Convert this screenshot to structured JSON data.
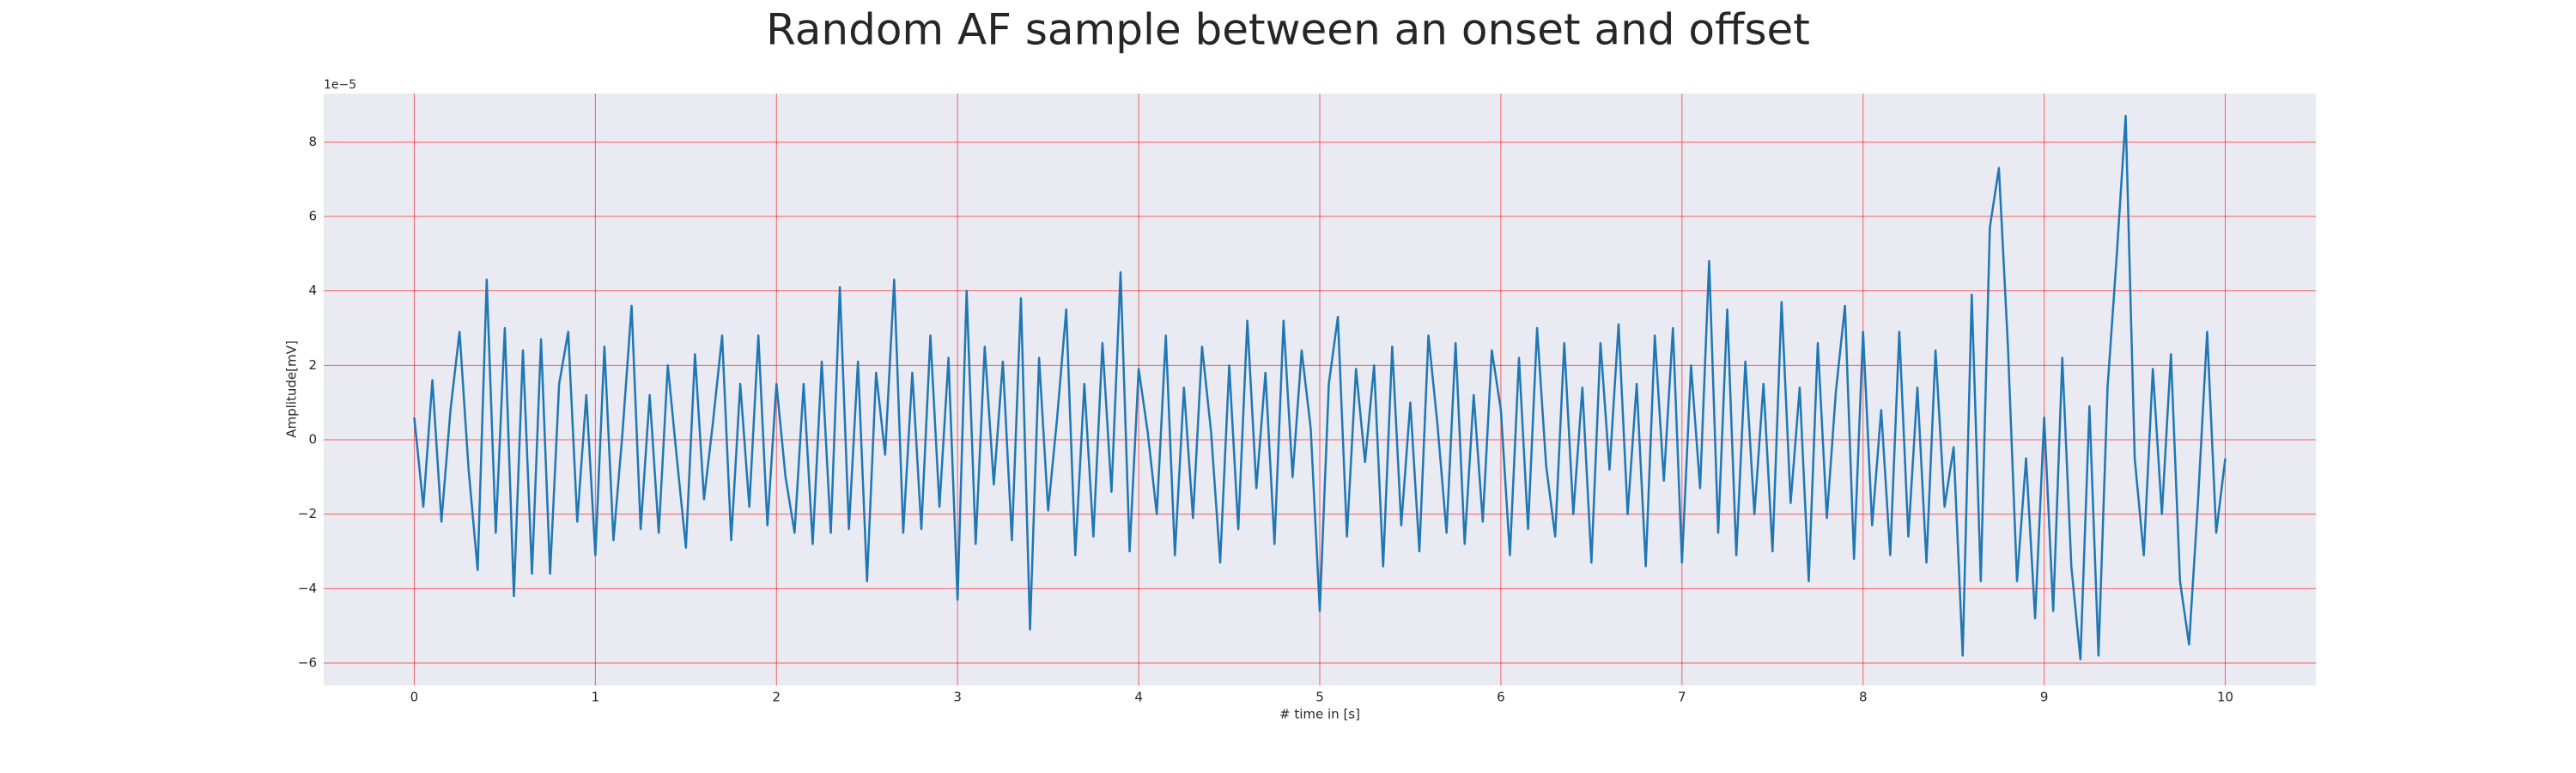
{
  "chart_data": {
    "type": "line",
    "title": "Random AF sample between an onset and offset",
    "xlabel": "# time in [s]",
    "ylabel": "Amplitude[mV]",
    "y_offset_label": "1e−5",
    "color": "#1f77b4",
    "background": "#eaeaf2",
    "grid": true,
    "grid_color": "#ff0000",
    "xlim": [
      -0.5,
      10.5
    ],
    "ylim": [
      -6.6,
      9.3
    ],
    "xticks": [
      0,
      1,
      2,
      3,
      4,
      5,
      6,
      7,
      8,
      9,
      10
    ],
    "yticks": [
      {
        "value": -6,
        "label": "−6"
      },
      {
        "value": -4,
        "label": "−4"
      },
      {
        "value": -2,
        "label": "−2"
      },
      0,
      2,
      4,
      6,
      8
    ],
    "x": [
      0,
      0.05,
      0.1,
      0.15,
      0.2,
      0.25,
      0.3,
      0.35,
      0.4,
      0.45,
      0.5,
      0.55,
      0.6,
      0.65,
      0.7,
      0.75,
      0.8,
      0.85,
      0.9,
      0.95,
      1,
      1.05,
      1.1,
      1.15,
      1.2,
      1.25,
      1.3,
      1.35,
      1.4,
      1.45,
      1.5,
      1.55,
      1.6,
      1.65,
      1.7,
      1.75,
      1.8,
      1.85,
      1.9,
      1.95,
      2,
      2.05,
      2.1,
      2.15,
      2.2,
      2.25,
      2.3,
      2.35,
      2.4,
      2.45,
      2.5,
      2.55,
      2.6,
      2.65,
      2.7,
      2.75,
      2.8,
      2.85,
      2.9,
      2.95,
      3,
      3.05,
      3.1,
      3.15,
      3.2,
      3.25,
      3.3,
      3.35,
      3.4,
      3.45,
      3.5,
      3.55,
      3.6,
      3.65,
      3.7,
      3.75,
      3.8,
      3.85,
      3.9,
      3.95,
      4,
      4.05,
      4.1,
      4.15,
      4.2,
      4.25,
      4.3,
      4.35,
      4.4,
      4.45,
      4.5,
      4.55,
      4.6,
      4.65,
      4.7,
      4.75,
      4.8,
      4.85,
      4.9,
      4.95,
      5,
      5.05,
      5.1,
      5.15,
      5.2,
      5.25,
      5.3,
      5.35,
      5.4,
      5.45,
      5.5,
      5.55,
      5.6,
      5.65,
      5.7,
      5.75,
      5.8,
      5.85,
      5.9,
      5.95,
      6,
      6.05,
      6.1,
      6.15,
      6.2,
      6.25,
      6.3,
      6.35,
      6.4,
      6.45,
      6.5,
      6.55,
      6.6,
      6.65,
      6.7,
      6.75,
      6.8,
      6.85,
      6.9,
      6.95,
      7,
      7.05,
      7.1,
      7.15,
      7.2,
      7.25,
      7.3,
      7.35,
      7.4,
      7.45,
      7.5,
      7.55,
      7.6,
      7.65,
      7.7,
      7.75,
      7.8,
      7.85,
      7.9,
      7.95,
      8,
      8.05,
      8.1,
      8.15,
      8.2,
      8.25,
      8.3,
      8.35,
      8.4,
      8.45,
      8.5,
      8.55,
      8.6,
      8.65,
      8.7,
      8.75,
      8.8,
      8.85,
      8.9,
      8.95,
      9,
      9.05,
      9.1,
      9.15,
      9.2,
      9.25,
      9.3,
      9.35,
      9.4,
      9.45,
      9.5,
      9.55,
      9.6,
      9.65,
      9.7,
      9.75,
      9.8,
      9.85,
      9.9,
      9.95,
      10
    ],
    "values": [
      0.6,
      -1.8,
      1.6,
      -2.2,
      0.8,
      2.9,
      -0.8,
      -3.5,
      4.3,
      -2.5,
      3.0,
      -4.2,
      2.4,
      -3.6,
      2.7,
      -3.6,
      1.5,
      2.9,
      -2.2,
      1.2,
      -3.1,
      2.5,
      -2.7,
      0.2,
      3.6,
      -2.4,
      1.2,
      -2.5,
      2.0,
      -0.5,
      -2.9,
      2.3,
      -1.6,
      0.5,
      2.8,
      -2.7,
      1.5,
      -1.8,
      2.8,
      -2.3,
      1.5,
      -1.0,
      -2.5,
      1.5,
      -2.8,
      2.1,
      -2.5,
      4.1,
      -2.4,
      2.1,
      -3.8,
      1.8,
      -0.4,
      4.3,
      -2.5,
      1.8,
      -2.4,
      2.8,
      -1.8,
      2.2,
      -4.3,
      4.0,
      -2.8,
      2.5,
      -1.2,
      2.1,
      -2.7,
      3.8,
      -5.1,
      2.2,
      -1.9,
      0.6,
      3.5,
      -3.1,
      1.5,
      -2.6,
      2.6,
      -1.4,
      4.5,
      -3.0,
      1.9,
      0.2,
      -2.0,
      2.8,
      -3.1,
      1.4,
      -2.1,
      2.5,
      0.2,
      -3.3,
      2.0,
      -2.4,
      3.2,
      -1.3,
      1.8,
      -2.8,
      3.2,
      -1.0,
      2.4,
      0.3,
      -4.6,
      1.5,
      3.3,
      -2.6,
      1.9,
      -0.6,
      2.0,
      -3.4,
      2.5,
      -2.3,
      1.0,
      -3.0,
      2.8,
      0.4,
      -2.5,
      2.6,
      -2.8,
      1.2,
      -2.2,
      2.4,
      0.8,
      -3.1,
      2.2,
      -2.4,
      3.0,
      -0.7,
      -2.6,
      2.6,
      -2.0,
      1.4,
      -3.3,
      2.6,
      -0.8,
      3.1,
      -2.0,
      1.5,
      -3.4,
      2.8,
      -1.1,
      3.0,
      -3.3,
      2.0,
      -1.3,
      4.8,
      -2.5,
      3.5,
      -3.1,
      2.1,
      -2.0,
      1.5,
      -3.0,
      3.7,
      -1.7,
      1.4,
      -3.8,
      2.6,
      -2.1,
      1.3,
      3.6,
      -3.2,
      2.9,
      -2.3,
      0.8,
      -3.1,
      2.9,
      -2.6,
      1.4,
      -3.3,
      2.4,
      -1.8,
      -0.2,
      -5.8,
      3.9,
      -3.8,
      5.7,
      7.3,
      2.5,
      -3.8,
      -0.5,
      -4.8,
      0.6,
      -4.6,
      2.2,
      -3.4,
      -5.9,
      0.9,
      -5.8,
      1.4,
      4.9,
      8.7,
      -0.5,
      -3.1,
      1.9,
      -2.0,
      2.3,
      -3.8,
      -5.5,
      -1.6,
      2.9,
      -2.5,
      -0.5
    ]
  }
}
